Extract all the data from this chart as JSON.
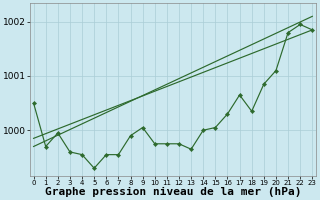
{
  "xlabel": "Graphe pression niveau de la mer (hPa)",
  "x": [
    0,
    1,
    2,
    3,
    4,
    5,
    6,
    7,
    8,
    9,
    10,
    11,
    12,
    13,
    14,
    15,
    16,
    17,
    18,
    19,
    20,
    21,
    22,
    23
  ],
  "y_main": [
    1000.5,
    999.7,
    999.95,
    999.6,
    999.55,
    999.3,
    999.55,
    999.55,
    999.9,
    1000.05,
    999.75,
    999.75,
    999.75,
    999.65,
    1000.0,
    1000.05,
    1000.3,
    1000.65,
    1000.35,
    1000.85,
    1001.1,
    1001.8,
    1001.95,
    1001.85
  ],
  "trend1_x": [
    0,
    23
  ],
  "trend1_y": [
    999.7,
    1002.1
  ],
  "trend2_x": [
    0,
    23
  ],
  "trend2_y": [
    999.85,
    1001.85
  ],
  "ylim": [
    999.15,
    1002.35
  ],
  "yticks": [
    1000,
    1001,
    1002
  ],
  "ytick_labels": [
    "1000",
    "1001",
    "1002"
  ],
  "xlim": [
    -0.3,
    23.3
  ],
  "bg_color": "#cce8ef",
  "grid_color": "#aacdd6",
  "line_color": "#2d6a2d",
  "xlabel_fontsize": 8,
  "ytick_fontsize": 6.5,
  "xtick_fontsize": 5.0
}
